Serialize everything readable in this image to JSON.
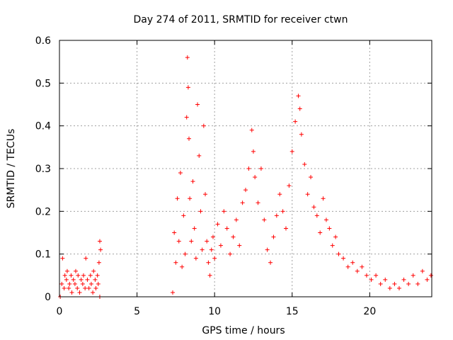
{
  "chart_data": {
    "type": "scatter",
    "title": "Day 274 of 2011, SRMTID for receiver ctwn",
    "xlabel": "GPS time / hours",
    "ylabel": "SRMTID / TECUs",
    "xlim": [
      0,
      24
    ],
    "ylim": [
      0,
      0.6
    ],
    "xticks": [
      0,
      5,
      10,
      15,
      20
    ],
    "xtick_labels": [
      "0",
      "5",
      "10",
      "15",
      "20"
    ],
    "yticks": [
      0,
      0.1,
      0.2,
      0.3,
      0.4,
      0.5,
      0.6
    ],
    "ytick_labels": [
      "0",
      "0.1",
      "0.2",
      "0.3",
      "0.4",
      "0.5",
      "0.6"
    ],
    "grid": true,
    "marker": "+",
    "color": "#ff0000",
    "series": [
      {
        "name": "SRMTID",
        "points": [
          [
            0.05,
            0.0
          ],
          [
            0.15,
            0.03
          ],
          [
            0.2,
            0.09
          ],
          [
            0.3,
            0.02
          ],
          [
            0.35,
            0.05
          ],
          [
            0.45,
            0.04
          ],
          [
            0.5,
            0.06
          ],
          [
            0.6,
            0.02
          ],
          [
            0.65,
            0.03
          ],
          [
            0.75,
            0.05
          ],
          [
            0.8,
            0.01
          ],
          [
            0.9,
            0.04
          ],
          [
            1.0,
            0.03
          ],
          [
            1.05,
            0.06
          ],
          [
            1.15,
            0.02
          ],
          [
            1.2,
            0.05
          ],
          [
            1.3,
            0.01
          ],
          [
            1.4,
            0.04
          ],
          [
            1.5,
            0.03
          ],
          [
            1.55,
            0.05
          ],
          [
            1.65,
            0.02
          ],
          [
            1.7,
            0.09
          ],
          [
            1.8,
            0.04
          ],
          [
            1.9,
            0.02
          ],
          [
            2.0,
            0.05
          ],
          [
            2.05,
            0.03
          ],
          [
            2.15,
            0.01
          ],
          [
            2.2,
            0.06
          ],
          [
            2.3,
            0.04
          ],
          [
            2.35,
            0.02
          ],
          [
            2.45,
            0.05
          ],
          [
            2.5,
            0.03
          ],
          [
            2.55,
            0.08
          ],
          [
            2.6,
            0.13
          ],
          [
            2.65,
            0.11
          ],
          [
            2.6,
            0.0
          ],
          [
            7.3,
            0.01
          ],
          [
            7.4,
            0.15
          ],
          [
            7.5,
            0.08
          ],
          [
            7.6,
            0.23
          ],
          [
            7.7,
            0.13
          ],
          [
            7.8,
            0.29
          ],
          [
            7.9,
            0.07
          ],
          [
            8.0,
            0.19
          ],
          [
            8.1,
            0.1
          ],
          [
            8.2,
            0.42
          ],
          [
            8.25,
            0.56
          ],
          [
            8.3,
            0.49
          ],
          [
            8.35,
            0.37
          ],
          [
            8.4,
            0.23
          ],
          [
            8.5,
            0.13
          ],
          [
            8.6,
            0.27
          ],
          [
            8.7,
            0.16
          ],
          [
            8.8,
            0.09
          ],
          [
            8.9,
            0.45
          ],
          [
            9.0,
            0.33
          ],
          [
            9.1,
            0.2
          ],
          [
            9.2,
            0.11
          ],
          [
            9.3,
            0.4
          ],
          [
            9.4,
            0.24
          ],
          [
            9.5,
            0.13
          ],
          [
            9.6,
            0.08
          ],
          [
            9.7,
            0.05
          ],
          [
            9.8,
            0.11
          ],
          [
            9.9,
            0.14
          ],
          [
            10.0,
            0.09
          ],
          [
            10.2,
            0.17
          ],
          [
            10.4,
            0.12
          ],
          [
            10.6,
            0.2
          ],
          [
            10.8,
            0.16
          ],
          [
            11.0,
            0.1
          ],
          [
            11.2,
            0.14
          ],
          [
            11.4,
            0.18
          ],
          [
            11.6,
            0.12
          ],
          [
            11.8,
            0.22
          ],
          [
            12.0,
            0.25
          ],
          [
            12.2,
            0.3
          ],
          [
            12.4,
            0.39
          ],
          [
            12.5,
            0.34
          ],
          [
            12.6,
            0.28
          ],
          [
            12.8,
            0.22
          ],
          [
            13.0,
            0.3
          ],
          [
            13.2,
            0.18
          ],
          [
            13.4,
            0.11
          ],
          [
            13.6,
            0.08
          ],
          [
            13.8,
            0.14
          ],
          [
            14.0,
            0.19
          ],
          [
            14.2,
            0.24
          ],
          [
            14.4,
            0.2
          ],
          [
            14.6,
            0.16
          ],
          [
            14.8,
            0.26
          ],
          [
            15.0,
            0.34
          ],
          [
            15.2,
            0.41
          ],
          [
            15.4,
            0.47
          ],
          [
            15.5,
            0.44
          ],
          [
            15.6,
            0.38
          ],
          [
            15.8,
            0.31
          ],
          [
            16.0,
            0.24
          ],
          [
            16.2,
            0.28
          ],
          [
            16.4,
            0.21
          ],
          [
            16.6,
            0.19
          ],
          [
            16.8,
            0.15
          ],
          [
            17.0,
            0.23
          ],
          [
            17.2,
            0.18
          ],
          [
            17.4,
            0.16
          ],
          [
            17.6,
            0.12
          ],
          [
            17.8,
            0.14
          ],
          [
            18.0,
            0.1
          ],
          [
            18.3,
            0.09
          ],
          [
            18.6,
            0.07
          ],
          [
            18.9,
            0.08
          ],
          [
            19.2,
            0.06
          ],
          [
            19.5,
            0.07
          ],
          [
            19.8,
            0.05
          ],
          [
            20.1,
            0.04
          ],
          [
            20.4,
            0.05
          ],
          [
            20.7,
            0.03
          ],
          [
            21.0,
            0.04
          ],
          [
            21.3,
            0.02
          ],
          [
            21.6,
            0.03
          ],
          [
            21.9,
            0.02
          ],
          [
            22.2,
            0.04
          ],
          [
            22.5,
            0.03
          ],
          [
            22.8,
            0.05
          ],
          [
            23.1,
            0.03
          ],
          [
            23.4,
            0.06
          ],
          [
            23.7,
            0.04
          ],
          [
            23.95,
            0.05
          ]
        ]
      }
    ]
  }
}
